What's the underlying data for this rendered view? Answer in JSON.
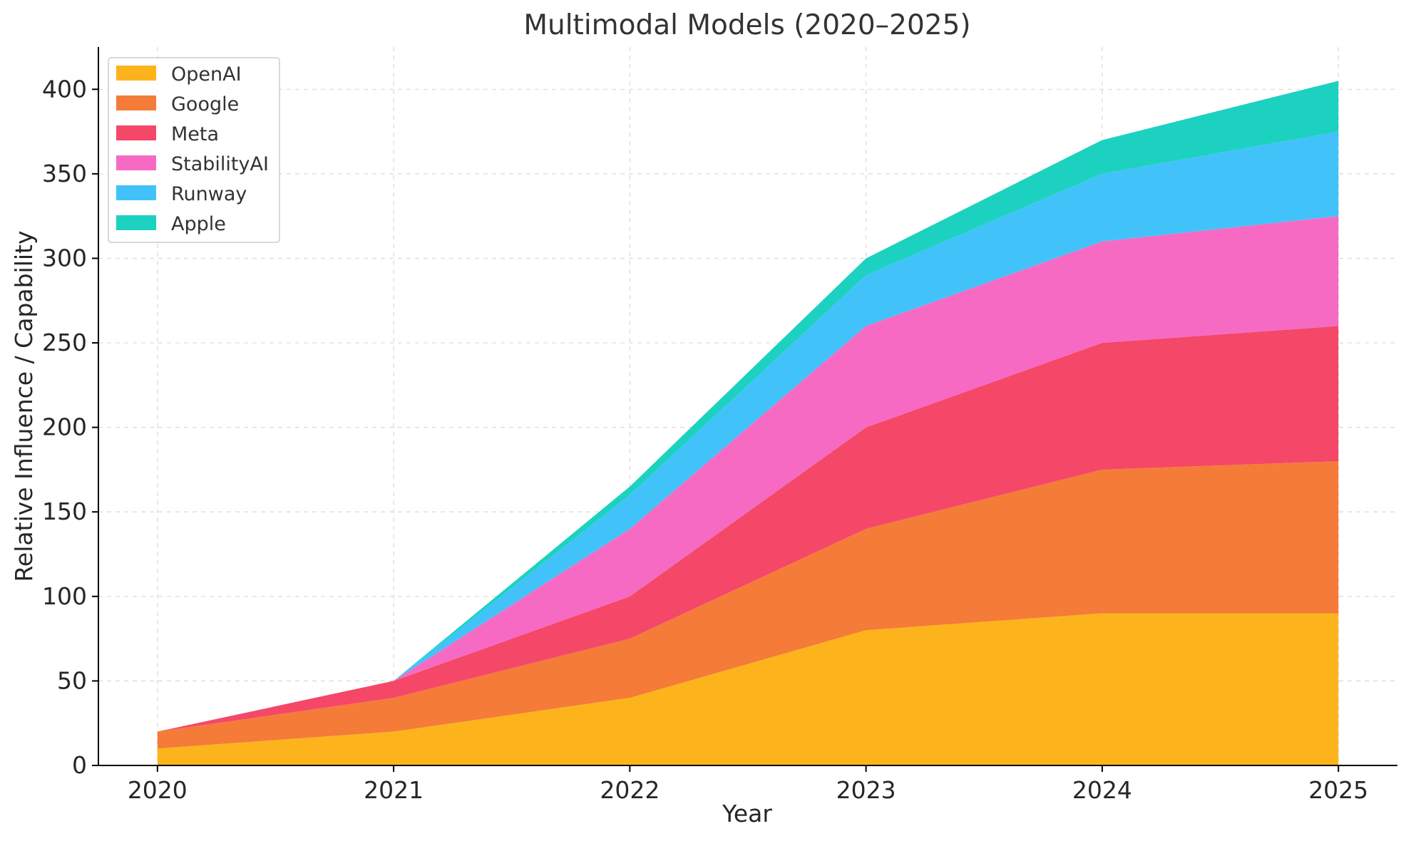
{
  "chart_data": {
    "type": "area",
    "stacked": true,
    "title": "Multimodal Models (2020–2025)",
    "xlabel": "Year",
    "ylabel": "Relative Influence / Capability",
    "x": [
      2020,
      2021,
      2022,
      2023,
      2024,
      2025
    ],
    "x_tick_labels": [
      "2020",
      "2021",
      "2022",
      "2023",
      "2024",
      "2025"
    ],
    "xlim": [
      2019.75,
      2025.25
    ],
    "ylim": [
      0,
      425
    ],
    "y_ticks": [
      0,
      50,
      100,
      150,
      200,
      250,
      300,
      350,
      400
    ],
    "y_tick_labels": [
      "0",
      "50",
      "100",
      "150",
      "200",
      "250",
      "300",
      "350",
      "400"
    ],
    "grid": true,
    "legend_position": "top-left",
    "series": [
      {
        "name": "OpenAI",
        "color": "#FDB41C",
        "values": [
          10,
          20,
          40,
          80,
          90,
          90
        ]
      },
      {
        "name": "Google",
        "color": "#F57B38",
        "values": [
          10,
          20,
          35,
          60,
          85,
          90
        ]
      },
      {
        "name": "Meta",
        "color": "#F54768",
        "values": [
          0,
          10,
          25,
          60,
          75,
          80
        ]
      },
      {
        "name": "StabilityAI",
        "color": "#F76AC3",
        "values": [
          0,
          0,
          40,
          60,
          60,
          65
        ]
      },
      {
        "name": "Runway",
        "color": "#41C3FA",
        "values": [
          0,
          0,
          20,
          30,
          40,
          50
        ]
      },
      {
        "name": "Apple",
        "color": "#1DD1C1",
        "values": [
          0,
          0,
          5,
          10,
          20,
          30
        ]
      }
    ]
  }
}
